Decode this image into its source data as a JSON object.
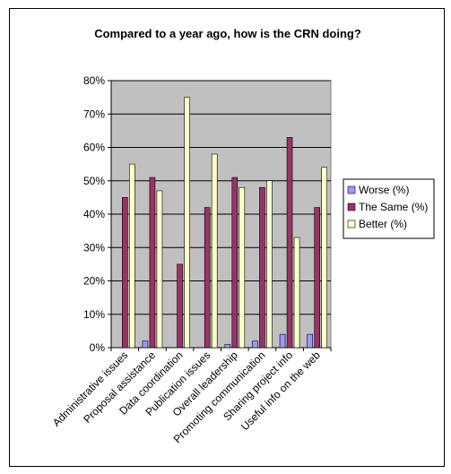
{
  "chart_data": {
    "type": "bar",
    "title": "Compared to a year ago, how is the CRN doing?",
    "xlabel": "",
    "ylabel": "",
    "ylim": [
      0,
      80
    ],
    "yticks": [
      "0%",
      "10%",
      "20%",
      "30%",
      "40%",
      "50%",
      "60%",
      "70%",
      "80%"
    ],
    "grid": true,
    "legend_position": "right",
    "categories": [
      "Administrative issues",
      "Proposal assistance",
      "Data coordination",
      "Publication issues",
      "Overall leadership",
      "Promoting communication",
      "Sharing project info",
      "Useful info on the web"
    ],
    "series": [
      {
        "name": "Worse (%)",
        "color": "#9999ff",
        "values": [
          0,
          2,
          0,
          0,
          1,
          2,
          4,
          4
        ]
      },
      {
        "name": "The Same (%)",
        "color": "#993366",
        "values": [
          45,
          51,
          25,
          42,
          51,
          48,
          63,
          42
        ]
      },
      {
        "name": "Better (%)",
        "color": "#ffffcc",
        "values": [
          55,
          47,
          75,
          58,
          48,
          50,
          33,
          54
        ]
      }
    ],
    "plot_background": "#c0c0c0"
  }
}
